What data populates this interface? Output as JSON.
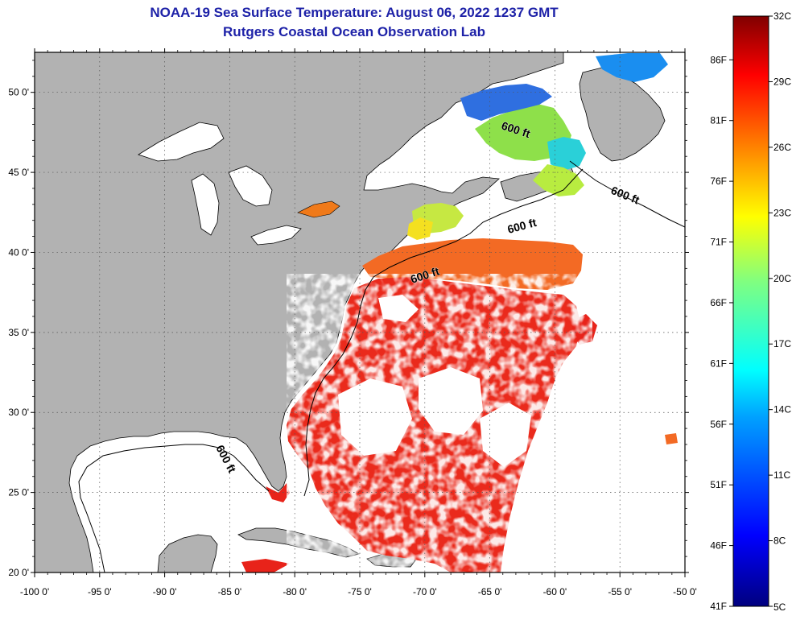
{
  "header": {
    "title_line1": "NOAA-19 Sea Surface Temperature:  August 06, 2022 1237 GMT",
    "title_line2": "Rutgers Coastal Ocean Observation Lab"
  },
  "map": {
    "lon_range": [
      -100,
      -50
    ],
    "lat_range": [
      20,
      52.5
    ],
    "lon_ticks": [
      "-100 0'",
      "-95 0'",
      "-90 0'",
      "-85 0'",
      "-80 0'",
      "-75 0'",
      "-70 0'",
      "-65 0'",
      "-60 0'",
      "-55 0'",
      "-50 0'"
    ],
    "lat_ticks": [
      "20 0'",
      "25 0'",
      "30 0'",
      "35 0'",
      "40 0'",
      "45 0'",
      "50 0'"
    ],
    "contour_labels": [
      "600 ft",
      "600 ft",
      "600 ft",
      "600 ft",
      "600 ft"
    ],
    "colors": {
      "land": "#b2b2b2",
      "no_data": "#ffffff",
      "warm_sst": "#e8231a",
      "grid": "#444444"
    }
  },
  "colorbar": {
    "celsius_labels": [
      "32C",
      "29C",
      "26C",
      "23C",
      "20C",
      "17C",
      "14C",
      "11C",
      "8C",
      "5C"
    ],
    "fahrenheit_labels": [
      "86F",
      "81F",
      "76F",
      "71F",
      "66F",
      "61F",
      "56F",
      "51F",
      "46F",
      "41F"
    ],
    "range_c": [
      5,
      32
    ]
  }
}
